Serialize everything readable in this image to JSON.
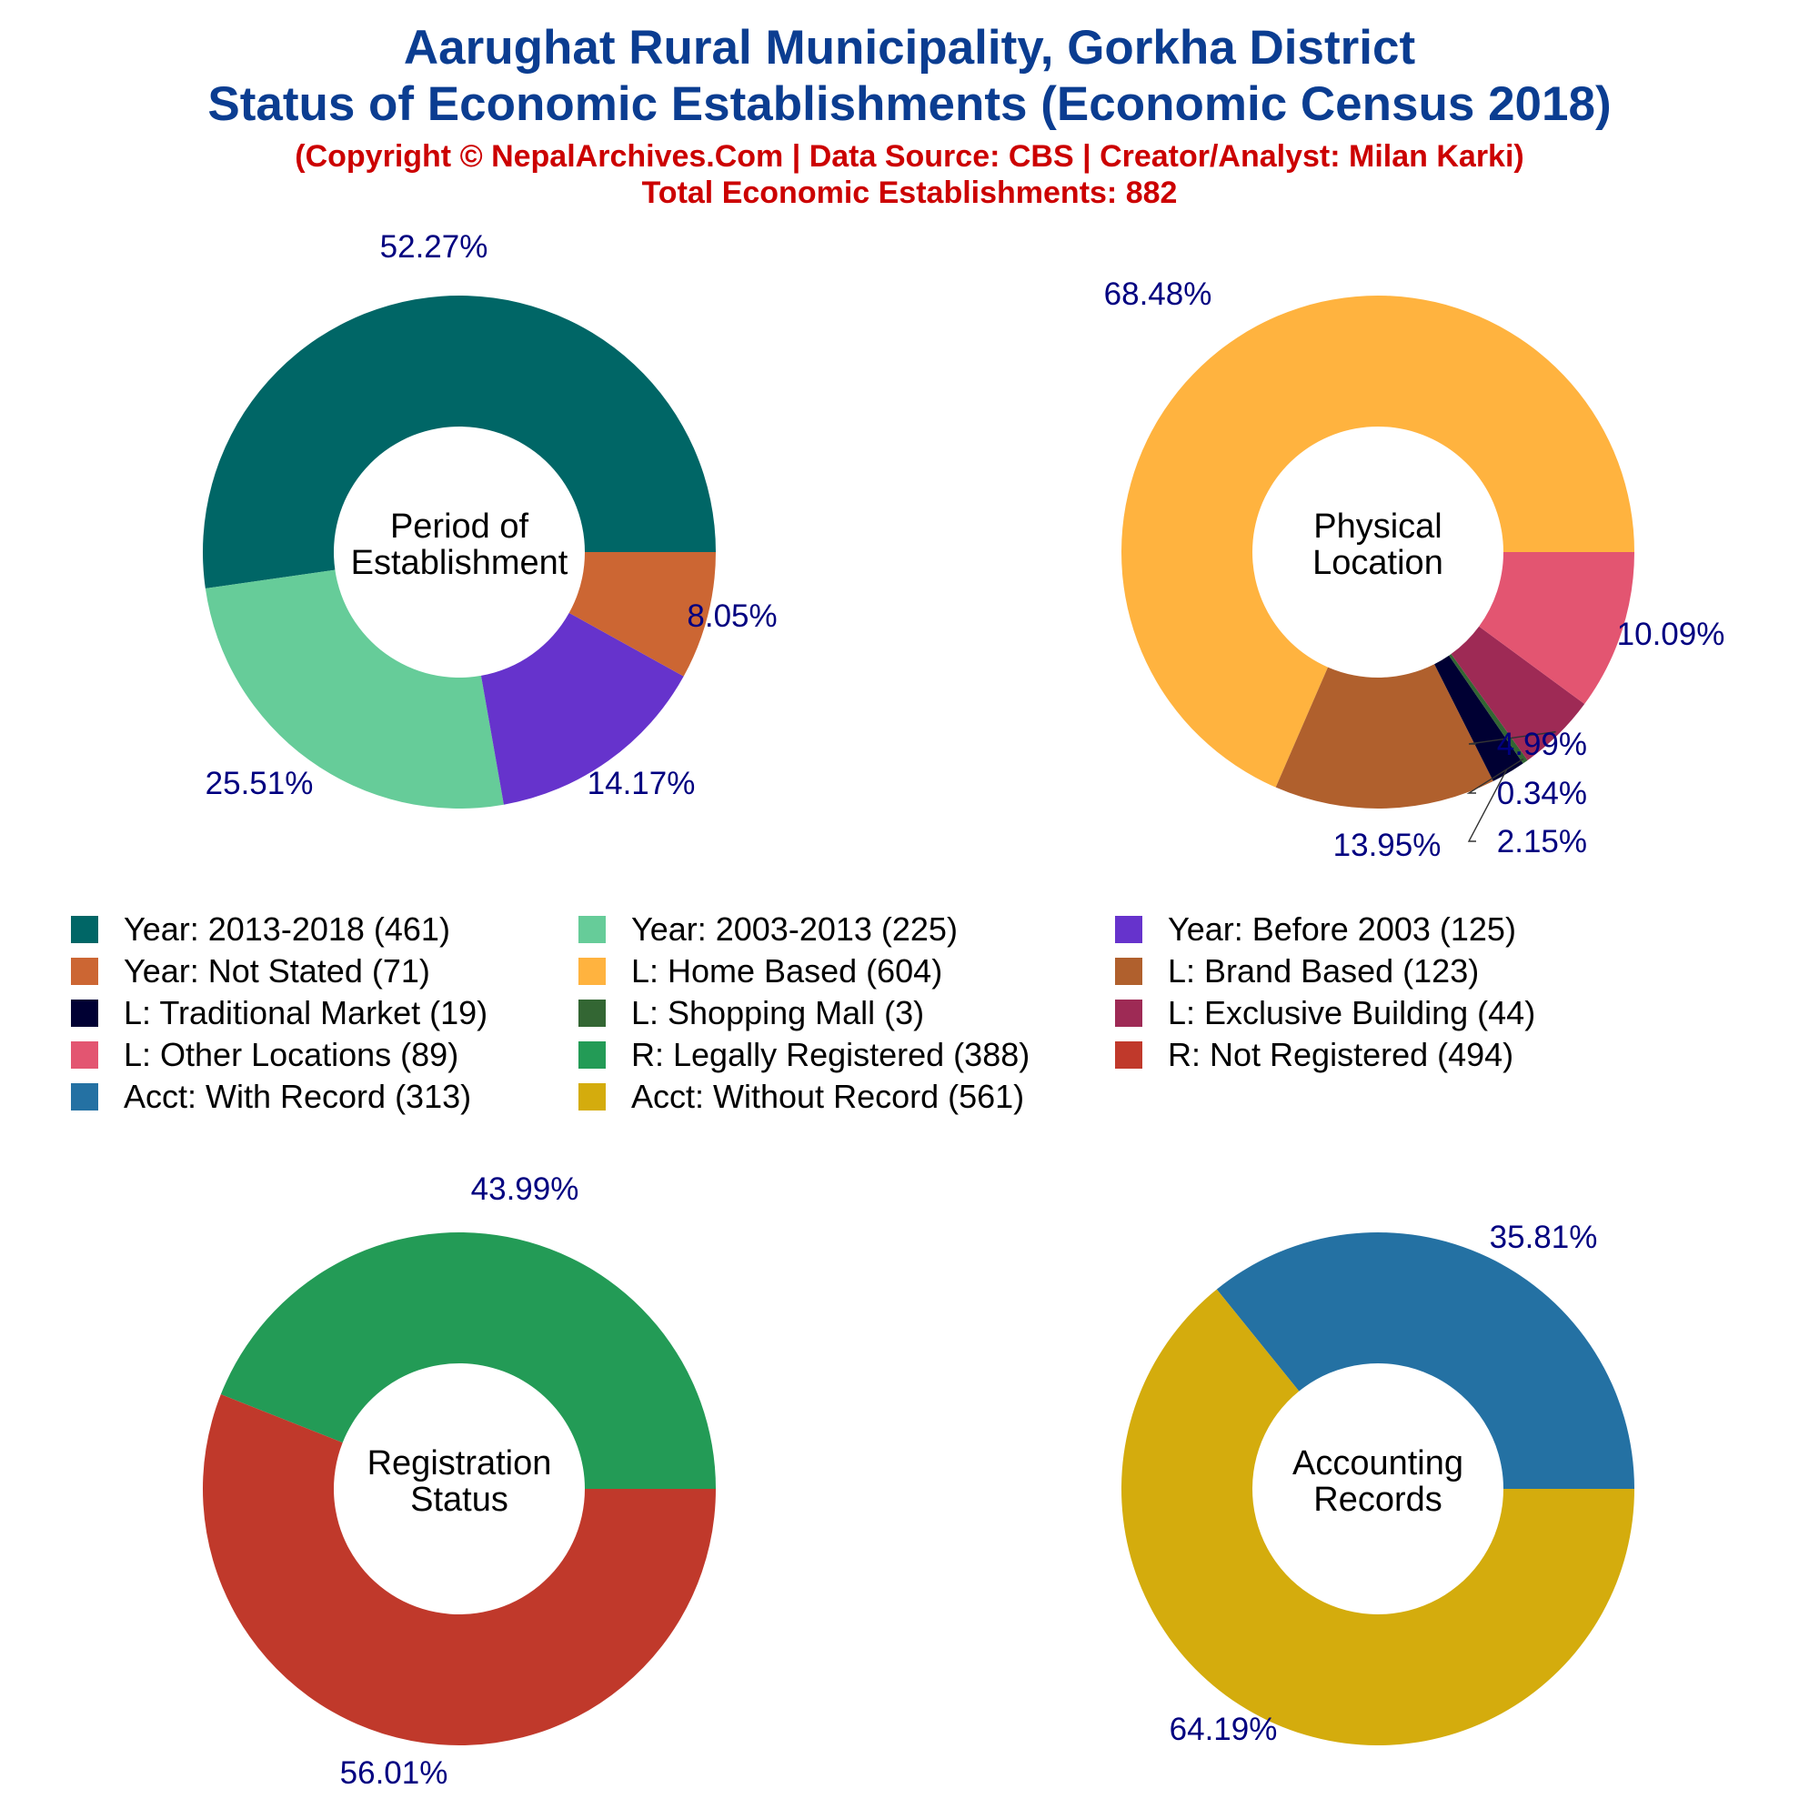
{
  "header": {
    "title_line1": "Aarughat Rural Municipality, Gorkha District",
    "title_line2": "Status of Economic Establishments (Economic Census 2018)",
    "subtitle_line1": "(Copyright © NepalArchives.Com | Data Source: CBS | Creator/Analyst: Milan Karki)",
    "subtitle_line2": "Total Economic Establishments: 882"
  },
  "colors": {
    "label_text": "#000080",
    "center_text": "#000000",
    "leader_line": "#333333"
  },
  "chart_data": [
    {
      "type": "pie",
      "style": "donut",
      "center_label": [
        "Period of",
        "Establishment"
      ],
      "slices": [
        {
          "label": "Year: 2013-2018",
          "value": 461,
          "pct_label": "52.27%",
          "color": "#006666"
        },
        {
          "label": "Year: 2003-2013",
          "value": 225,
          "pct_label": "25.51%",
          "color": "#66CC99"
        },
        {
          "label": "Year: Before 2003",
          "value": 125,
          "pct_label": "14.17%",
          "color": "#6633CC"
        },
        {
          "label": "Year: Not Stated",
          "value": 71,
          "pct_label": "8.05%",
          "color": "#CC6633"
        }
      ]
    },
    {
      "type": "pie",
      "style": "donut",
      "center_label": [
        "Physical",
        "Location"
      ],
      "slices": [
        {
          "label": "L: Home Based",
          "value": 604,
          "pct_label": "68.48%",
          "color": "#FFB33F"
        },
        {
          "label": "L: Brand Based",
          "value": 123,
          "pct_label": "13.95%",
          "color": "#B0602D"
        },
        {
          "label": "L: Traditional Market",
          "value": 19,
          "pct_label": "2.15%",
          "color": "#000033"
        },
        {
          "label": "L: Shopping Mall",
          "value": 3,
          "pct_label": "0.34%",
          "color": "#336633"
        },
        {
          "label": "L: Exclusive Building",
          "value": 44,
          "pct_label": "4.99%",
          "color": "#9E2A55"
        },
        {
          "label": "L: Other Locations",
          "value": 89,
          "pct_label": "10.09%",
          "color": "#E35571"
        }
      ]
    },
    {
      "type": "pie",
      "style": "donut",
      "center_label": [
        "Registration",
        "Status"
      ],
      "slices": [
        {
          "label": "R: Legally Registered",
          "value": 388,
          "pct_label": "43.99%",
          "color": "#239B56"
        },
        {
          "label": "R: Not Registered",
          "value": 494,
          "pct_label": "56.01%",
          "color": "#C0392B"
        }
      ]
    },
    {
      "type": "pie",
      "style": "donut",
      "center_label": [
        "Accounting",
        "Records"
      ],
      "slices": [
        {
          "label": "Acct: With Record",
          "value": 313,
          "pct_label": "35.81%",
          "color": "#2471A3"
        },
        {
          "label": "Acct: Without Record",
          "value": 561,
          "pct_label": "64.19%",
          "color": "#D4AC0D"
        }
      ]
    }
  ],
  "legend": [
    {
      "label": "Year: 2013-2018 (461)",
      "color": "#006666"
    },
    {
      "label": "Year: 2003-2013 (225)",
      "color": "#66CC99"
    },
    {
      "label": "Year: Before 2003 (125)",
      "color": "#6633CC"
    },
    {
      "label": "Year: Not Stated (71)",
      "color": "#CC6633"
    },
    {
      "label": "L: Home Based (604)",
      "color": "#FFB33F"
    },
    {
      "label": "L: Brand Based (123)",
      "color": "#B0602D"
    },
    {
      "label": "L: Traditional Market (19)",
      "color": "#000033"
    },
    {
      "label": "L: Shopping Mall (3)",
      "color": "#336633"
    },
    {
      "label": "L: Exclusive Building (44)",
      "color": "#9E2A55"
    },
    {
      "label": "L: Other Locations (89)",
      "color": "#E35571"
    },
    {
      "label": "R: Legally Registered (388)",
      "color": "#239B56"
    },
    {
      "label": "R: Not Registered (494)",
      "color": "#C0392B"
    },
    {
      "label": "Acct: With Record (313)",
      "color": "#2471A3"
    },
    {
      "label": "Acct: Without Record (561)",
      "color": "#D4AC0D"
    }
  ]
}
